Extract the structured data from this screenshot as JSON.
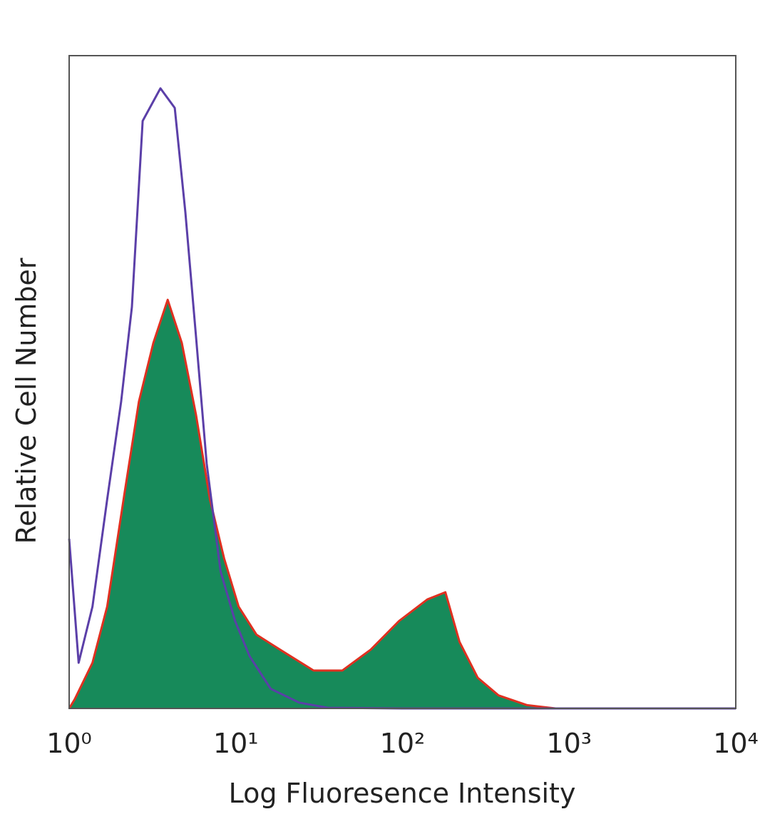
{
  "chart_data": {
    "type": "histogram-overlay",
    "xlabel": "Log Fluoresence Intensity",
    "ylabel": "Relative Cell Number",
    "xscale": "log",
    "xlim": [
      1,
      10000
    ],
    "ylim": [
      0,
      100
    ],
    "xticks": [
      {
        "value": 1,
        "label": "10⁰"
      },
      {
        "value": 10,
        "label": "10¹"
      },
      {
        "value": 100,
        "label": "10²"
      },
      {
        "value": 1000,
        "label": "10³"
      },
      {
        "value": 10000,
        "label": "10⁴"
      }
    ],
    "series": [
      {
        "color": "#e03020",
        "fill": "#178a5a",
        "x": [
          1,
          1.08,
          1.38,
          1.69,
          2.15,
          2.62,
          3.2,
          3.9,
          4.74,
          5.77,
          7,
          8.5,
          10.4,
          13.3,
          19.8,
          29.3,
          43.5,
          64.5,
          95.4,
          141,
          181,
          220,
          283,
          377,
          560,
          830
        ],
        "values": [
          0,
          1.4,
          7,
          15.6,
          33,
          47,
          56,
          62.6,
          56,
          45,
          32,
          23,
          15.6,
          11.3,
          8.5,
          5.8,
          5.8,
          9,
          13.4,
          16.7,
          17.8,
          10.2,
          4.7,
          2,
          0.5,
          0
        ]
      },
      {
        "color": "#5b3fa8",
        "x": [
          1,
          1.14,
          1.38,
          1.69,
          2.05,
          2.38,
          2.76,
          3.53,
          4.3,
          4.98,
          5.77,
          6.69,
          8.1,
          9.9,
          12.1,
          16.2,
          24,
          35.7,
          100,
          10000
        ],
        "values": [
          26,
          7,
          15.6,
          32,
          47,
          61.5,
          90,
          95,
          92,
          76,
          57,
          37.5,
          21,
          13.4,
          8,
          3,
          0.9,
          0.1,
          0,
          0
        ]
      }
    ]
  }
}
